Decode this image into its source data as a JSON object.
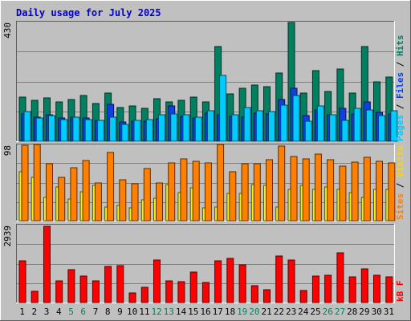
{
  "chart_data": {
    "type": "bar",
    "title": "Daily usage for July 2025",
    "categories": [
      "1",
      "2",
      "3",
      "4",
      "5",
      "6",
      "7",
      "8",
      "9",
      "10",
      "11",
      "12",
      "13",
      "14",
      "15",
      "16",
      "17",
      "18",
      "19",
      "20",
      "21",
      "22",
      "23",
      "24",
      "25",
      "26",
      "27",
      "28",
      "29",
      "30",
      "31"
    ],
    "weekend_days": [
      "5",
      "6",
      "12",
      "13",
      "19",
      "20",
      "26",
      "27"
    ],
    "panels": [
      {
        "id": "top",
        "max_label": "430",
        "ylim": [
          0,
          430
        ],
        "legend": [
          {
            "text": "Pages",
            "color": "#00ccff"
          },
          {
            "text": "Files",
            "color": "#0040ff"
          },
          {
            "text": "Hits",
            "color": "#008060"
          }
        ],
        "series": [
          {
            "name": "Hits",
            "color": "#008060",
            "values": [
              160,
              148,
              157,
              141,
              150,
              164,
              135,
              172,
              121,
              126,
              119,
              153,
              141,
              147,
              160,
              141,
              340,
              170,
              190,
              201,
              197,
              245,
              427,
              172,
              253,
              180,
              260,
              172,
              341,
              214,
              232
            ]
          },
          {
            "name": "Files",
            "color": "#1040e0",
            "values": [
              98,
              88,
              95,
              84,
              86,
              83,
              76,
              133,
              70,
              71,
              73,
              82,
              127,
              90,
              83,
              100,
              96,
              90,
              87,
              100,
              97,
              150,
              190,
              91,
              112,
              96,
              118,
              98,
              142,
              105,
              99
            ]
          },
          {
            "name": "Pages",
            "color": "#00ccff",
            "values": [
              106,
              85,
              92,
              77,
              86,
              77,
              75,
              88,
              62,
              74,
              77,
              95,
              98,
              95,
              86,
              109,
              237,
              95,
              120,
              111,
              107,
              130,
              164,
              73,
              128,
              95,
              74,
              117,
              113,
              92,
              109
            ]
          }
        ]
      },
      {
        "id": "mid",
        "max_label": "98",
        "ylim": [
          0,
          98
        ],
        "legend": [
          {
            "text": "Sites",
            "color": "#ff8000"
          },
          {
            "text": "Visits",
            "color": "#ffd500"
          }
        ],
        "series": [
          {
            "name": "Visits",
            "color": "#f2f20a",
            "values": [
              63,
              56,
              30,
              43,
              28,
              37,
              45,
              18,
              20,
              16,
              27,
              29,
              46,
              36,
              42,
              16,
              18,
              35,
              35,
              46,
              45,
              18,
              40,
              45,
              40,
              43,
              40,
              36,
              30,
              40,
              40
            ]
          },
          {
            "name": "Sites",
            "color": "#ff8000",
            "values": [
              97,
              98,
              73,
              56,
              68,
              77,
              48,
              88,
              53,
              47,
              67,
              48,
              74,
              79,
              76,
              74,
              98,
              63,
              73,
              73,
              78,
              96,
              83,
              79,
              86,
              78,
              70,
              75,
              81,
              76,
              74
            ]
          }
        ]
      },
      {
        "id": "bot",
        "max_label": "2939",
        "ylim": [
          0,
          2939
        ],
        "legend": [
          {
            "text": "kB F",
            "color": "#ff0000"
          }
        ],
        "series": [
          {
            "name": "kB F",
            "color": "#ff0000",
            "values": [
              1572,
              410,
              2890,
              822,
              1244,
              1004,
              808,
              1367,
              1408,
              359,
              567,
              1608,
              829,
              792,
              1152,
              756,
              1582,
              1674,
              1438,
              630,
              498,
              1760,
              1592,
              452,
              1000,
              1016,
              1885,
              956,
              1287,
              1043,
              980
            ]
          }
        ]
      }
    ]
  }
}
